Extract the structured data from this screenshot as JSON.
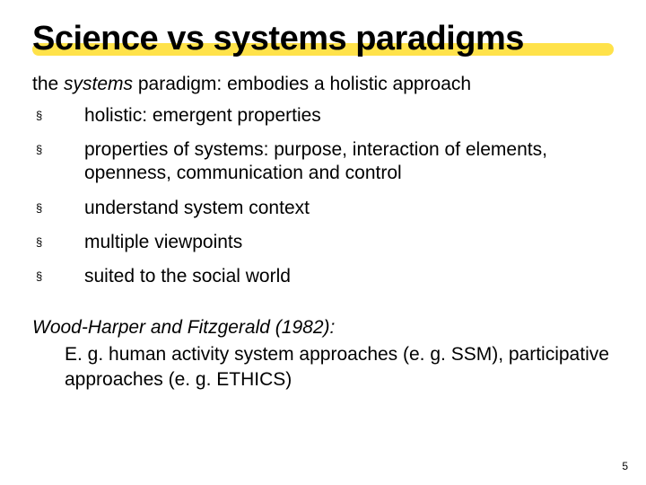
{
  "slide": {
    "title": "Science vs systems paradigms",
    "title_fontsize": 38,
    "title_color": "#000000",
    "underline_color": "#ffe24a",
    "intro_prefix": "the ",
    "intro_italic": "systems",
    "intro_suffix": "  paradigm: embodies a holistic approach",
    "intro_fontsize": 21,
    "bullet_marker": "§",
    "bullet_fontsize": 21,
    "bullets": [
      "holistic: emergent properties",
      "properties of systems: purpose, interaction of elements, openness, communication and control",
      "understand system context",
      "multiple viewpoints",
      "suited to the social world"
    ],
    "citation_line": "Wood-Harper and Fitzgerald (1982):",
    "citation_body": "E. g. human activity system approaches (e. g. SSM), participative approaches (e. g. ETHICS)",
    "citation_fontsize": 21,
    "page_number": "5",
    "page_number_fontsize": 12,
    "background_color": "#ffffff"
  }
}
